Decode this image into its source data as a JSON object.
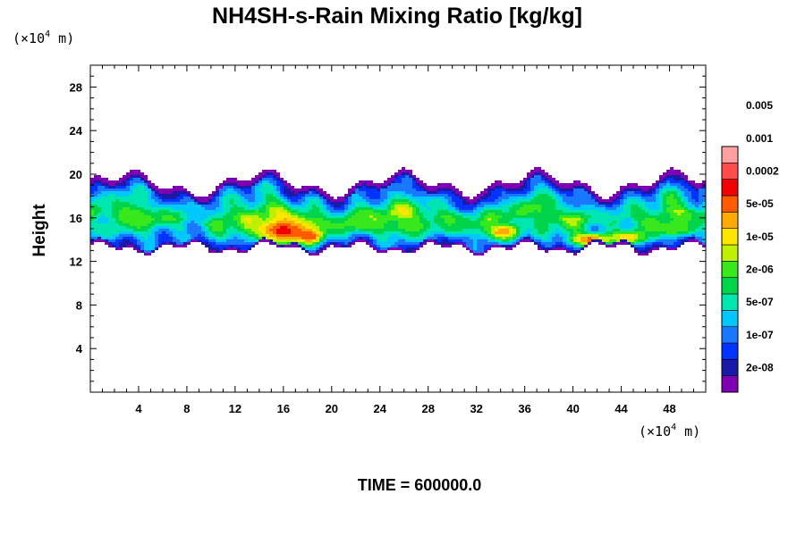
{
  "chart_data": {
    "type": "heatmap",
    "title": "NH4SH-s-Rain Mixing Ratio [kg/kg]",
    "ylabel": "Height",
    "y_unit": {
      "prefix": "(×10",
      "exp": "4",
      "suffix": " m)"
    },
    "x_unit": {
      "prefix": "(×10",
      "exp": "4",
      "suffix": " m)"
    },
    "xlim": [
      0,
      51
    ],
    "ylim": [
      0,
      30
    ],
    "xticks": [
      4,
      8,
      12,
      16,
      20,
      24,
      28,
      32,
      36,
      40,
      44,
      48
    ],
    "yticks": [
      4,
      8,
      12,
      16,
      20,
      24,
      28
    ],
    "colorbar": {
      "levels": [
        "2e-08",
        "1e-07",
        "5e-07",
        "2e-06",
        "1e-05",
        "5e-05",
        "0.0002",
        "0.001",
        "0.005"
      ],
      "colors": [
        "#7f00b2",
        "#1a1aa8",
        "#0033ff",
        "#1a78ff",
        "#00c8ff",
        "#00e6b0",
        "#00d44a",
        "#38e81c",
        "#bff000",
        "#ffe600",
        "#ffaa00",
        "#ff5a00",
        "#f00000",
        "#ff4b4b",
        "#ffa0a0"
      ]
    },
    "field": {
      "base_band": {
        "bottom": 13.5,
        "top": 18.5
      },
      "blobs": [
        {
          "x": 16.0,
          "y": 14.8,
          "sx": 2.6,
          "sy": 1.3,
          "level": 12.5
        },
        {
          "x": 18.2,
          "y": 14.3,
          "sx": 1.0,
          "sy": 0.6,
          "level": 12.0
        },
        {
          "x": 22.5,
          "y": 15.6,
          "sx": 2.0,
          "sy": 1.0,
          "level": 8.0
        },
        {
          "x": 26.5,
          "y": 15.3,
          "sx": 2.2,
          "sy": 0.9,
          "level": 7.5
        },
        {
          "x": 30.5,
          "y": 15.6,
          "sx": 1.5,
          "sy": 0.8,
          "level": 7.0
        },
        {
          "x": 34.2,
          "y": 14.7,
          "sx": 1.4,
          "sy": 0.7,
          "level": 11.0
        },
        {
          "x": 41.5,
          "y": 14.0,
          "sx": 1.8,
          "sy": 0.6,
          "level": 11.5
        },
        {
          "x": 44.5,
          "y": 14.2,
          "sx": 1.5,
          "sy": 0.6,
          "level": 10.0
        },
        {
          "x": 48.5,
          "y": 15.0,
          "sx": 1.8,
          "sy": 0.7,
          "level": 8.0
        },
        {
          "x": 1.5,
          "y": 14.8,
          "sx": 1.0,
          "sy": 0.5,
          "level": 6.0
        }
      ]
    }
  },
  "time_label": "TIME = 600000.0"
}
